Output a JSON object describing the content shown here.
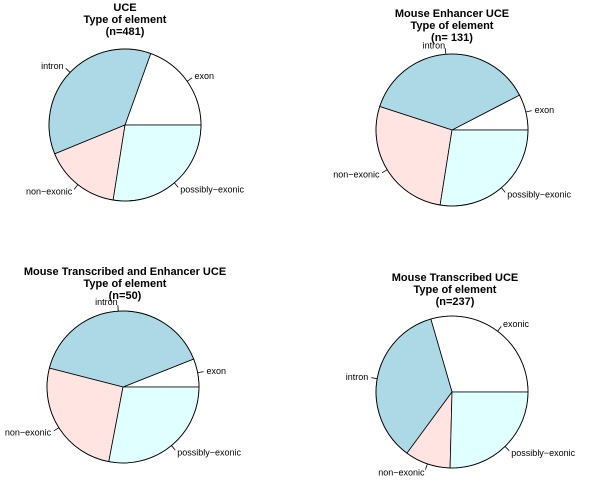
{
  "chart_data": [
    {
      "type": "pie",
      "title_line1": "UCE",
      "title_line2": "Type of element",
      "title_line3": "(n=481)",
      "start_angle_deg": 0,
      "direction": "counterclockwise",
      "slices": [
        {
          "label": "exon",
          "value": 0.195,
          "color": "#ffffff"
        },
        {
          "label": "intron",
          "value": 0.367,
          "color": "#add8e6"
        },
        {
          "label": "non-exonic",
          "value": 0.163,
          "color": "#ffe4e1"
        },
        {
          "label": "possibly-exonic",
          "value": 0.275,
          "color": "#e0ffff"
        }
      ]
    },
    {
      "type": "pie",
      "title_line1": "Mouse Enhancer UCE",
      "title_line2": "Type of element",
      "title_line3": "(n= 131)",
      "start_angle_deg": 0,
      "direction": "counterclockwise",
      "slices": [
        {
          "label": "exon",
          "value": 0.076,
          "color": "#ffffff"
        },
        {
          "label": "intron",
          "value": 0.374,
          "color": "#add8e6"
        },
        {
          "label": "non-exonic",
          "value": 0.275,
          "color": "#ffe4e1"
        },
        {
          "label": "possibly-exonic",
          "value": 0.275,
          "color": "#e0ffff"
        }
      ]
    },
    {
      "type": "pie",
      "title_line1": "Mouse Transcribed and Enhancer UCE",
      "title_line2": "Type of element",
      "title_line3": "(n=50)",
      "start_angle_deg": 0,
      "direction": "counterclockwise",
      "slices": [
        {
          "label": "exon",
          "value": 0.06,
          "color": "#ffffff"
        },
        {
          "label": "intron",
          "value": 0.4,
          "color": "#add8e6"
        },
        {
          "label": "non-exonic",
          "value": 0.26,
          "color": "#ffe4e1"
        },
        {
          "label": "possibly-exonic",
          "value": 0.28,
          "color": "#e0ffff"
        }
      ]
    },
    {
      "type": "pie",
      "title_line1": "Mouse Transcribed UCE",
      "title_line2": "Type of element",
      "title_line3": "(n=237)",
      "start_angle_deg": 0,
      "direction": "counterclockwise",
      "slices": [
        {
          "label": "exonic",
          "value": 0.295,
          "color": "#ffffff"
        },
        {
          "label": "intron",
          "value": 0.354,
          "color": "#add8e6"
        },
        {
          "label": "non-exonic",
          "value": 0.097,
          "color": "#ffe4e1"
        },
        {
          "label": "possibly-exonic",
          "value": 0.254,
          "color": "#e0ffff"
        }
      ]
    }
  ],
  "label_display": {
    "non-exonic": "non−exonic",
    "possibly-exonic": "possibly−exonic"
  }
}
